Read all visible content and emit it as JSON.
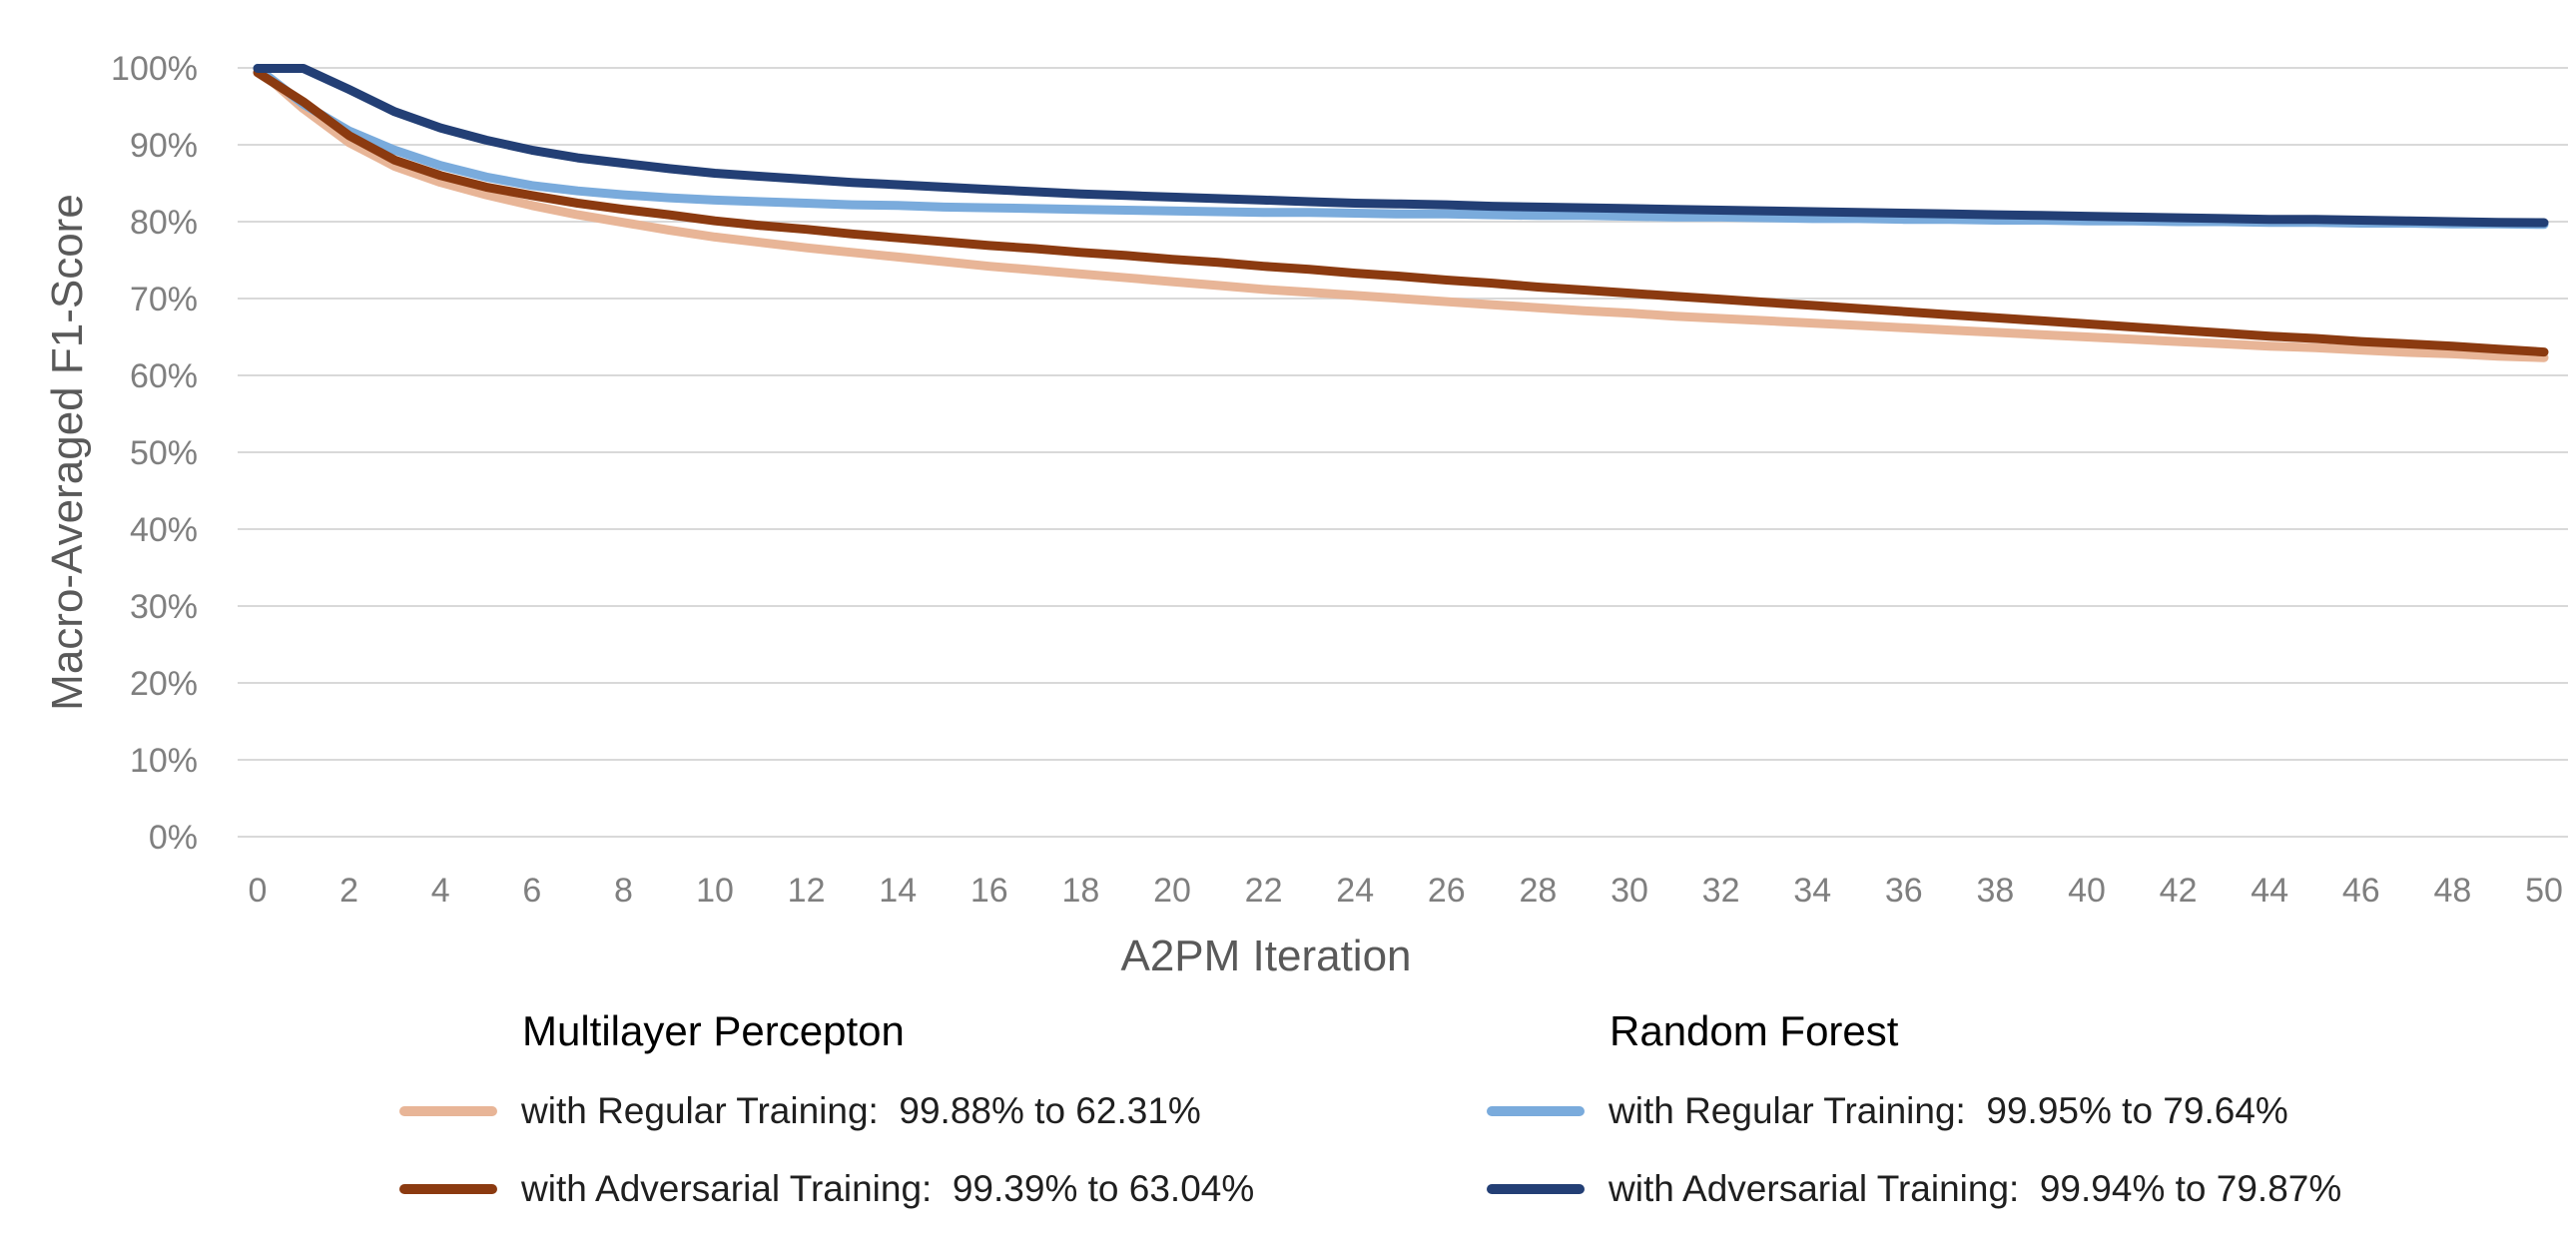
{
  "chart_data": {
    "type": "line",
    "xlabel": "A2PM Iteration",
    "ylabel": "Macro-Averaged F1-Score",
    "xlim": [
      0,
      50
    ],
    "ylim": [
      0,
      100
    ],
    "x_ticks": [
      0,
      2,
      4,
      6,
      8,
      10,
      12,
      14,
      16,
      18,
      20,
      22,
      24,
      26,
      28,
      30,
      32,
      34,
      36,
      38,
      40,
      42,
      44,
      46,
      48,
      50
    ],
    "y_ticks": [
      0,
      10,
      20,
      30,
      40,
      50,
      60,
      70,
      80,
      90,
      100
    ],
    "y_tick_labels": [
      "0%",
      "10%",
      "20%",
      "30%",
      "40%",
      "50%",
      "60%",
      "70%",
      "80%",
      "90%",
      "100%"
    ],
    "grid": "horizontal",
    "legend_placement": "bottom",
    "x": [
      0,
      1,
      2,
      3,
      4,
      5,
      6,
      7,
      8,
      9,
      10,
      11,
      12,
      13,
      14,
      15,
      16,
      17,
      18,
      19,
      20,
      21,
      22,
      23,
      24,
      25,
      26,
      27,
      28,
      29,
      30,
      31,
      32,
      33,
      34,
      35,
      36,
      37,
      38,
      39,
      40,
      41,
      42,
      43,
      44,
      45,
      46,
      47,
      48,
      49,
      50
    ],
    "groups": [
      {
        "title": "Multilayer Percepton",
        "series": [
          {
            "name": "with Regular Training:  99.88% to 62.31%",
            "color": "#e8b597",
            "values": [
              99.88,
              94.7,
              90.3,
              87.2,
              85.1,
              83.5,
              82.1,
              80.9,
              79.9,
              78.9,
              78.0,
              77.3,
              76.6,
              76.0,
              75.4,
              74.8,
              74.2,
              73.7,
              73.2,
              72.7,
              72.2,
              71.7,
              71.2,
              70.8,
              70.4,
              70.0,
              69.6,
              69.2,
              68.8,
              68.4,
              68.1,
              67.7,
              67.4,
              67.1,
              66.8,
              66.5,
              66.2,
              65.9,
              65.6,
              65.3,
              65.0,
              64.7,
              64.4,
              64.1,
              63.8,
              63.6,
              63.3,
              63.0,
              62.8,
              62.5,
              62.31
            ]
          },
          {
            "name": "with Adversarial Training:  99.39% to 63.04%",
            "color": "#8b3a10",
            "values": [
              99.39,
              95.6,
              91.2,
              88.0,
              86.0,
              84.5,
              83.4,
              82.4,
              81.6,
              80.9,
              80.1,
              79.5,
              79.0,
              78.4,
              77.9,
              77.4,
              76.9,
              76.5,
              76.0,
              75.6,
              75.1,
              74.7,
              74.2,
              73.8,
              73.3,
              72.9,
              72.4,
              72.0,
              71.5,
              71.1,
              70.7,
              70.3,
              69.9,
              69.5,
              69.1,
              68.7,
              68.3,
              67.9,
              67.5,
              67.1,
              66.7,
              66.3,
              65.9,
              65.5,
              65.1,
              64.8,
              64.4,
              64.1,
              63.8,
              63.4,
              63.04
            ]
          }
        ]
      },
      {
        "title": "Random Forest",
        "series": [
          {
            "name": "with Regular Training:  99.95% to 79.64%",
            "color": "#7aabdc",
            "values": [
              99.95,
              95.3,
              91.8,
              89.3,
              87.3,
              85.8,
              84.7,
              84.0,
              83.5,
              83.1,
              82.8,
              82.6,
              82.4,
              82.2,
              82.1,
              81.9,
              81.8,
              81.7,
              81.6,
              81.5,
              81.4,
              81.3,
              81.2,
              81.2,
              81.1,
              81.0,
              81.0,
              80.9,
              80.8,
              80.8,
              80.7,
              80.6,
              80.6,
              80.5,
              80.4,
              80.4,
              80.3,
              80.3,
              80.2,
              80.2,
              80.1,
              80.1,
              80.0,
              80.0,
              79.9,
              79.9,
              79.8,
              79.8,
              79.7,
              79.7,
              79.64
            ]
          },
          {
            "name": "with Adversarial Training:  99.94% to 79.87%",
            "color": "#233f75",
            "values": [
              99.94,
              99.94,
              97.2,
              94.3,
              92.2,
              90.6,
              89.3,
              88.3,
              87.6,
              86.9,
              86.3,
              85.9,
              85.5,
              85.1,
              84.8,
              84.5,
              84.2,
              83.9,
              83.6,
              83.4,
              83.2,
              83.0,
              82.8,
              82.6,
              82.4,
              82.3,
              82.2,
              82.0,
              81.9,
              81.8,
              81.7,
              81.6,
              81.5,
              81.4,
              81.3,
              81.2,
              81.1,
              81.0,
              80.9,
              80.8,
              80.7,
              80.6,
              80.5,
              80.4,
              80.3,
              80.3,
              80.2,
              80.1,
              80.0,
              79.9,
              79.87
            ]
          }
        ]
      }
    ]
  }
}
